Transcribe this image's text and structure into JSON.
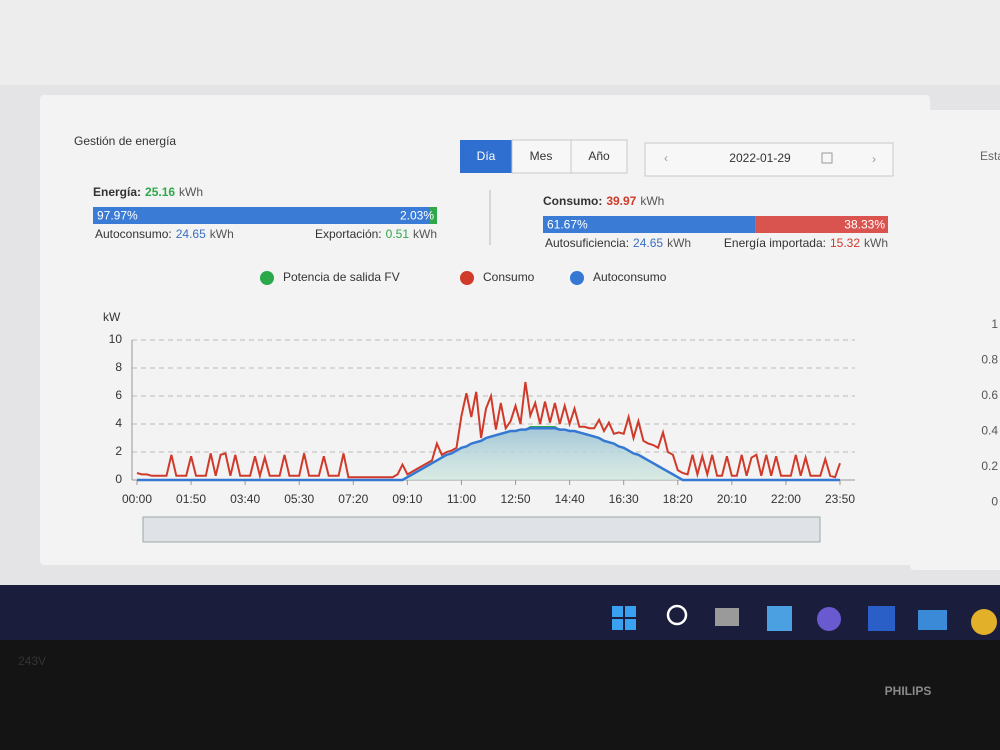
{
  "page": {
    "title": "Gestión de energía",
    "tabs": [
      "Día",
      "Mes",
      "Año"
    ],
    "date": "2022-01-29"
  },
  "energy": {
    "label": "Energía:",
    "total": 25.16,
    "unit": "kWh",
    "shares": [
      97.97,
      2.03
    ],
    "share_labels": [
      "97.97%",
      "2.03%"
    ],
    "share_colors": [
      "#3a7bd5",
      "#2ea84a"
    ],
    "left_label": "Autoconsumo:",
    "left_value": 24.65,
    "right_label": "Exportación:",
    "right_value": 0.51
  },
  "consumption": {
    "label": "Consumo:",
    "total": 39.97,
    "unit": "kWh",
    "shares": [
      61.67,
      38.33
    ],
    "share_labels": [
      "61.67%",
      "38.33%"
    ],
    "share_colors": [
      "#3a7bd5",
      "#d9534f"
    ],
    "left_label": "Autosuficiencia:",
    "left_value": 24.65,
    "right_label": "Energía importada:",
    "right_value": 15.32
  },
  "chart_data": {
    "type": "line",
    "y_label": "kW",
    "ylim": [
      0,
      10
    ],
    "yticks": [
      0,
      2,
      4,
      6,
      8,
      10
    ],
    "grid": true,
    "categories": [
      "00:00",
      null,
      null,
      null,
      null,
      null,
      null,
      null,
      null,
      null,
      null,
      "01:50",
      null,
      null,
      null,
      null,
      null,
      null,
      null,
      null,
      null,
      null,
      "03:40",
      null,
      null,
      null,
      null,
      null,
      null,
      null,
      null,
      null,
      null,
      "05:30",
      null,
      null,
      null,
      null,
      null,
      null,
      null,
      null,
      null,
      null,
      "07:20",
      null,
      null,
      null,
      null,
      null,
      null,
      null,
      null,
      null,
      null,
      "09:10",
      null,
      null,
      null,
      null,
      null,
      null,
      null,
      null,
      null,
      null,
      "11:00",
      null,
      null,
      null,
      null,
      null,
      null,
      null,
      null,
      null,
      null,
      "12:50",
      null,
      null,
      null,
      null,
      null,
      null,
      null,
      null,
      null,
      null,
      "14:40",
      null,
      null,
      null,
      null,
      null,
      null,
      null,
      null,
      null,
      null,
      "16:30",
      null,
      null,
      null,
      null,
      null,
      null,
      null,
      null,
      null,
      null,
      "18:20",
      null,
      null,
      null,
      null,
      null,
      null,
      null,
      null,
      null,
      null,
      "20:10",
      null,
      null,
      null,
      null,
      null,
      null,
      null,
      null,
      null,
      null,
      "22:00",
      null,
      null,
      null,
      null,
      null,
      null,
      null,
      null,
      null,
      null,
      "23:50"
    ],
    "series": [
      {
        "name": "Potencia de salida FV",
        "color": "#2aa84a",
        "values": [
          0,
          0,
          0,
          0,
          0,
          0,
          0,
          0,
          0,
          0,
          0,
          0,
          0,
          0,
          0,
          0,
          0,
          0,
          0,
          0,
          0,
          0,
          0,
          0,
          0,
          0,
          0,
          0,
          0,
          0,
          0,
          0,
          0,
          0,
          0,
          0,
          0,
          0,
          0,
          0,
          0,
          0,
          0,
          0,
          0,
          0,
          0,
          0,
          0,
          0,
          0,
          0,
          0,
          0,
          0,
          0.2,
          0.4,
          0.6,
          0.8,
          1.0,
          1.2,
          1.4,
          1.6,
          1.8,
          1.9,
          2.1,
          2.3,
          2.4,
          2.6,
          2.7,
          2.8,
          3.0,
          3.1,
          3.2,
          3.3,
          3.4,
          3.5,
          3.5,
          3.6,
          3.6,
          3.8,
          3.8,
          3.8,
          3.8,
          3.8,
          3.8,
          3.6,
          3.6,
          3.5,
          3.5,
          3.4,
          3.3,
          3.2,
          3.1,
          3.0,
          2.8,
          2.7,
          2.6,
          2.4,
          2.3,
          2.1,
          1.9,
          1.8,
          1.6,
          1.4,
          1.2,
          1.0,
          0.8,
          0.6,
          0.4,
          0.2,
          0,
          0,
          0,
          0,
          0,
          0,
          0,
          0,
          0,
          0,
          0,
          0,
          0,
          0,
          0,
          0,
          0,
          0,
          0,
          0,
          0,
          0,
          0,
          0,
          0,
          0,
          0,
          0,
          0,
          0,
          0,
          0,
          0
        ]
      },
      {
        "name": "Consumo",
        "color": "#d03a2a",
        "values": [
          0.5,
          0.4,
          0.4,
          0.3,
          0.3,
          0.3,
          0.3,
          1.8,
          0.3,
          0.3,
          0.3,
          1.7,
          0.3,
          0.3,
          0.3,
          1.9,
          0.3,
          1.8,
          1.9,
          0.3,
          1.8,
          0.3,
          0.3,
          0.3,
          1.7,
          0.3,
          1.6,
          0.3,
          0.3,
          0.3,
          1.8,
          0.3,
          0.3,
          0.3,
          1.9,
          0.3,
          0.3,
          0.3,
          1.7,
          0.3,
          0.3,
          0.3,
          1.9,
          0.2,
          0.2,
          0.2,
          0.2,
          0.2,
          0.2,
          0.2,
          0.2,
          0.2,
          0.2,
          0.4,
          1.1,
          0.4,
          0.6,
          0.8,
          1.0,
          1.2,
          1.4,
          2.6,
          1.8,
          2.0,
          2.1,
          2.3,
          4.6,
          6.2,
          4.5,
          6.3,
          3.0,
          5.1,
          6.0,
          3.6,
          5.5,
          3.7,
          4.2,
          5.3,
          4.0,
          7.0,
          4.6,
          5.5,
          4.0,
          5.6,
          4.1,
          5.5,
          4.0,
          5.3,
          4.0,
          5.1,
          3.8,
          3.8,
          3.7,
          3.7,
          4.3,
          3.5,
          4.1,
          3.3,
          3.4,
          3.3,
          4.5,
          3.0,
          4.2,
          2.8,
          2.6,
          2.5,
          2.3,
          3.4,
          2.0,
          1.8,
          0.7,
          0.5,
          0.4,
          1.8,
          0.4,
          1.7,
          0.4,
          1.8,
          0.3,
          0.3,
          1.7,
          0.3,
          0.3,
          1.8,
          0.3,
          1.6,
          1.8,
          0.3,
          1.8,
          0.3,
          1.7,
          0.3,
          0.3,
          0.3,
          1.8,
          0.3,
          1.6,
          0.3,
          0.3,
          0.3,
          1.5,
          0.3,
          0.2,
          1.2
        ]
      },
      {
        "name": "Autoconsumo",
        "color": "#3478d4",
        "values": [
          0,
          0,
          0,
          0,
          0,
          0,
          0,
          0,
          0,
          0,
          0,
          0,
          0,
          0,
          0,
          0,
          0,
          0,
          0,
          0,
          0,
          0,
          0,
          0,
          0,
          0,
          0,
          0,
          0,
          0,
          0,
          0,
          0,
          0,
          0,
          0,
          0,
          0,
          0,
          0,
          0,
          0,
          0,
          0,
          0,
          0,
          0,
          0,
          0,
          0,
          0,
          0,
          0,
          0,
          0,
          0.2,
          0.4,
          0.6,
          0.8,
          1.0,
          1.2,
          1.4,
          1.6,
          1.8,
          1.9,
          2.1,
          2.3,
          2.4,
          2.6,
          2.7,
          2.8,
          3.0,
          3.1,
          3.2,
          3.3,
          3.4,
          3.5,
          3.5,
          3.6,
          3.6,
          3.7,
          3.7,
          3.7,
          3.7,
          3.7,
          3.7,
          3.6,
          3.6,
          3.5,
          3.5,
          3.4,
          3.3,
          3.2,
          3.1,
          3.0,
          2.8,
          2.7,
          2.6,
          2.4,
          2.3,
          2.1,
          1.9,
          1.8,
          1.6,
          1.4,
          1.2,
          1.0,
          0.8,
          0.6,
          0.4,
          0.2,
          0,
          0,
          0,
          0,
          0,
          0,
          0,
          0,
          0,
          0,
          0,
          0,
          0,
          0,
          0,
          0,
          0,
          0,
          0,
          0,
          0,
          0,
          0,
          0,
          0,
          0,
          0,
          0,
          0,
          0,
          0,
          0,
          0
        ]
      }
    ]
  },
  "side_panel": {
    "title": "Esta",
    "ticks": [
      1,
      0.8,
      0.6,
      0.4,
      0.2,
      0
    ]
  },
  "monitor": {
    "model": "243V",
    "brand": "PHILIPS"
  }
}
